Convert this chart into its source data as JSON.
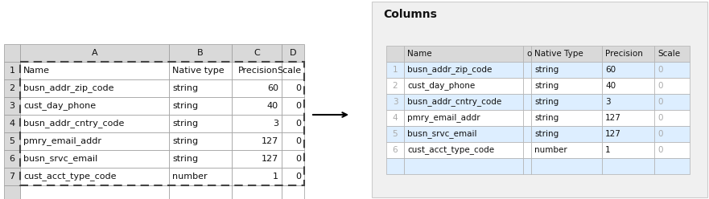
{
  "rows": [
    [
      "busn_addr_zip_code",
      "string",
      "60",
      "0"
    ],
    [
      "cust_day_phone",
      "string",
      "40",
      "0"
    ],
    [
      "busn_addr_cntry_code",
      "string",
      "3",
      "0"
    ],
    [
      "pmry_email_addr",
      "string",
      "127",
      "0"
    ],
    [
      "busn_srvc_email",
      "string",
      "127",
      "0"
    ],
    [
      "cust_acct_type_code",
      "number",
      "1",
      "0"
    ]
  ],
  "excel_col_headers": [
    "A",
    "B",
    "C",
    "D"
  ],
  "excel_row_labels": [
    "1",
    "2",
    "3",
    "4",
    "5",
    "6",
    "7"
  ],
  "excel_headers": [
    "Name",
    "Native type",
    "Precision",
    "Scale"
  ],
  "right_title": "Columns",
  "right_col_headers": [
    "Name",
    "o",
    "Native Type",
    "Precision",
    "Scale"
  ],
  "right_row_numbers": [
    "1",
    "2",
    "3",
    "4",
    "5",
    "6"
  ],
  "bg_color": "#ffffff",
  "excel_col_header_bg": "#d9d9d9",
  "excel_body_bg": "#ffffff",
  "right_panel_bg": "#f0f0f0",
  "right_header_bg": "#d9d9d9",
  "right_row_alt_bg": "#ddeeff",
  "right_row_bg": "#ffffff",
  "right_border_color": "#b0b0b0",
  "excel_border_color": "#999999",
  "dashed_border_color": "#444444",
  "right_num_color": "#aaaaaa",
  "arrow_color": "#000000",
  "title_color": "#111111"
}
